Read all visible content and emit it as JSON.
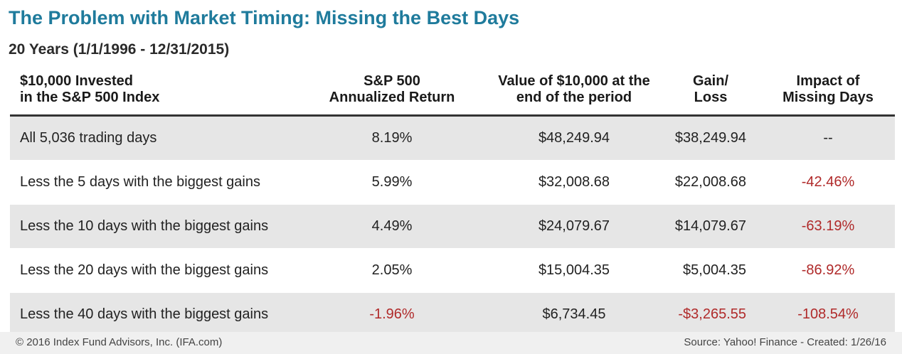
{
  "title": "The Problem with Market Timing: Missing the Best Days",
  "subtitle": "20 Years (1/1/1996 - 12/31/2015)",
  "chart_data": {
    "type": "table",
    "columns": [
      "$10,000 Invested\nin the S&P 500 Index",
      "S&P 500\nAnnualized Return",
      "Value of $10,000 at the\nend of the period",
      "Gain/\nLoss",
      "Impact of\nMissing Days"
    ],
    "rows": [
      {
        "label": "All 5,036 trading days",
        "annualized_return": "8.19%",
        "value": "$48,249.94",
        "gain_loss": "$38,249.94",
        "impact": "--"
      },
      {
        "label": "Less the 5 days with the biggest gains",
        "annualized_return": "5.99%",
        "value": "$32,008.68",
        "gain_loss": "$22,008.68",
        "impact": "-42.46%"
      },
      {
        "label": "Less the 10 days with the biggest gains",
        "annualized_return": "4.49%",
        "value": "$24,079.67",
        "gain_loss": "$14,079.67",
        "impact": "-63.19%"
      },
      {
        "label": "Less the 20 days with the biggest gains",
        "annualized_return": "2.05%",
        "value": "$15,004.35",
        "gain_loss": "$5,004.35",
        "impact": "-86.92%"
      },
      {
        "label": "Less the 40 days with the biggest gains",
        "annualized_return": "-1.96%",
        "value": "$6,734.45",
        "gain_loss": "-$3,265.55",
        "impact": "-108.54%"
      }
    ]
  },
  "footer": {
    "left": "© 2016 Index Fund Advisors, Inc. (IFA.com)",
    "right": "Source: Yahoo! Finance - Created: 1/26/16"
  },
  "colors": {
    "title": "#1f7b9c",
    "negative": "#b02a2a",
    "row_shade": "#e6e6e6"
  }
}
